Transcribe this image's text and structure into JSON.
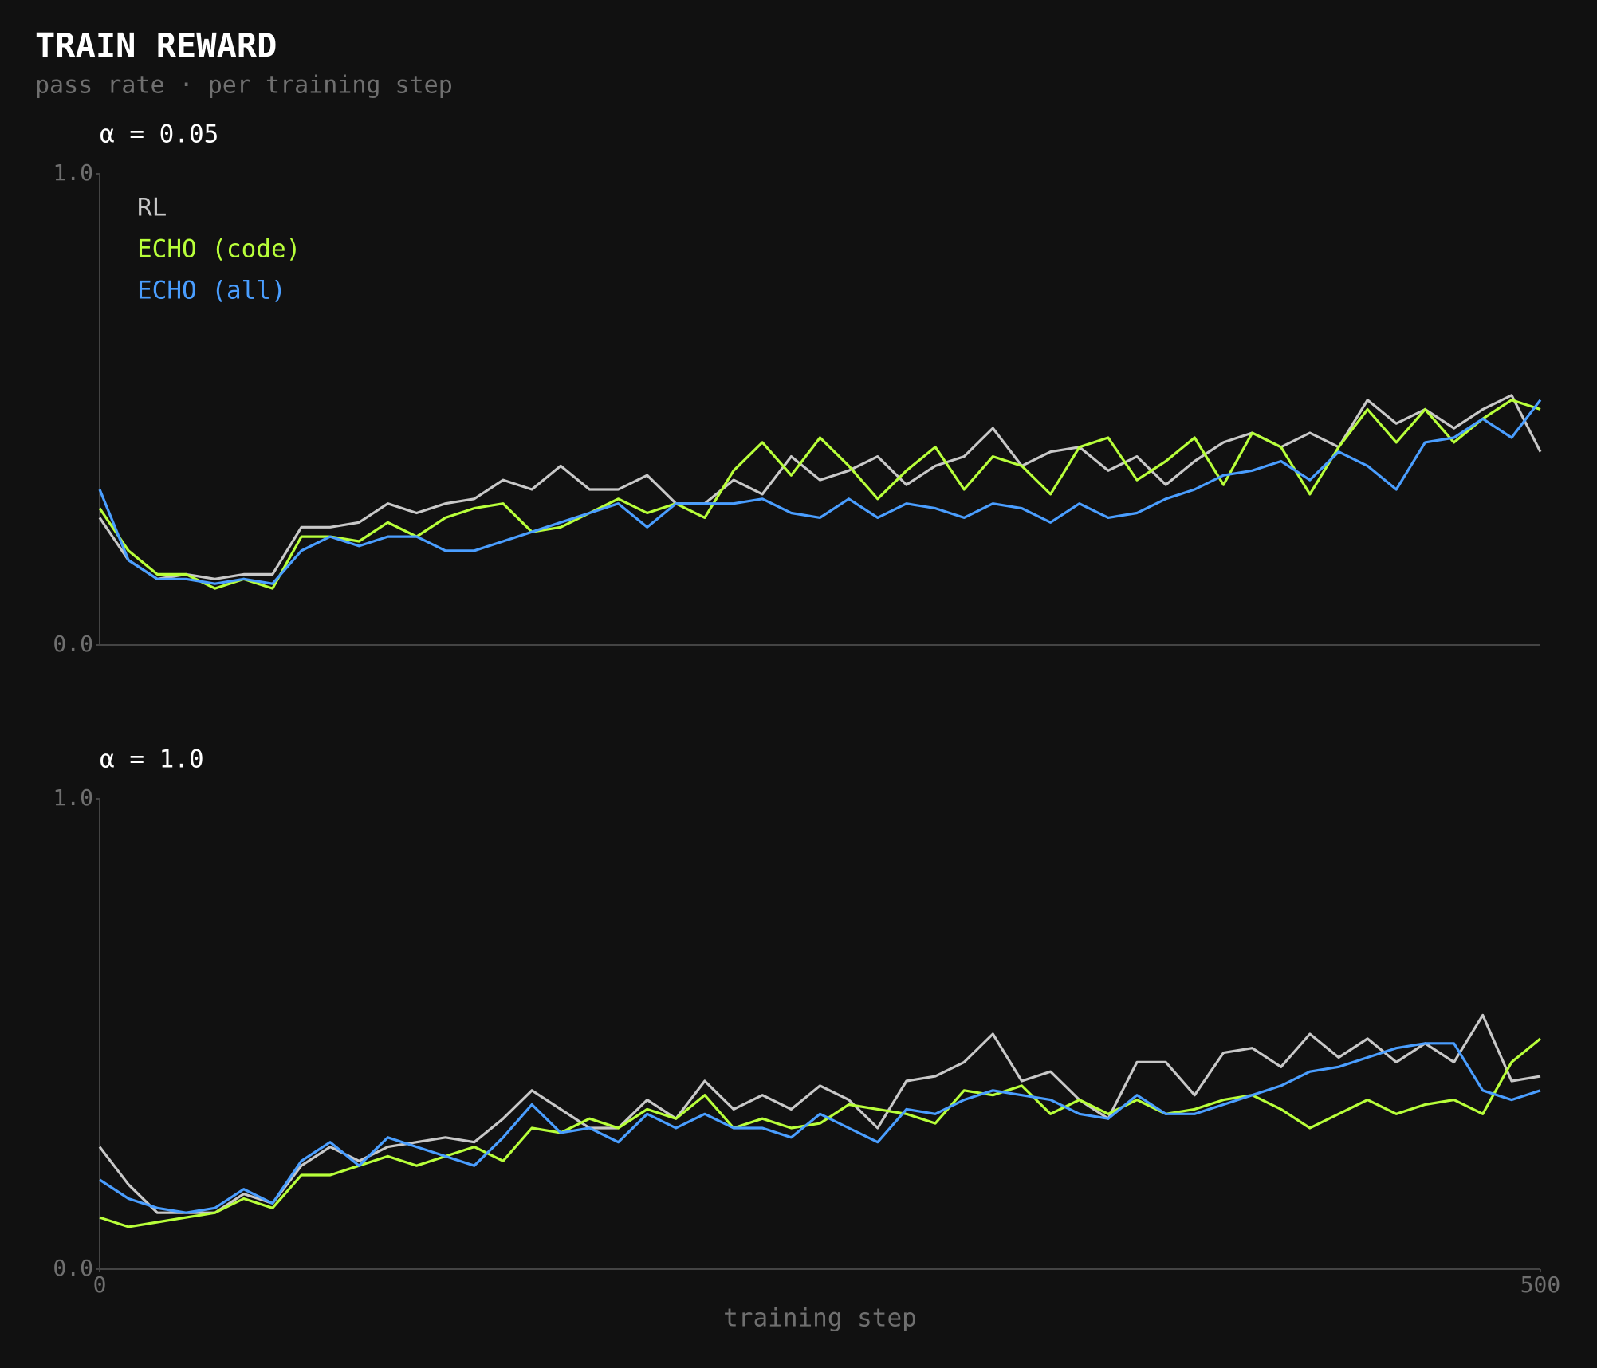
{
  "title": "TRAIN REWARD",
  "subtitle": "pass rate · per training step",
  "chart_data": [
    {
      "type": "line",
      "title": "α = 0.05",
      "legend": "upper left",
      "xlim": [
        0,
        500
      ],
      "ylim": [
        0,
        1
      ],
      "yticks": [
        {
          "value": 0,
          "label": "0.0"
        },
        {
          "value": 1,
          "label": "1.0"
        }
      ],
      "x": [
        0,
        10,
        20,
        30,
        40,
        50,
        60,
        70,
        80,
        90,
        100,
        110,
        120,
        130,
        140,
        150,
        160,
        170,
        180,
        190,
        200,
        210,
        220,
        230,
        240,
        250,
        260,
        270,
        280,
        290,
        300,
        310,
        320,
        330,
        340,
        350,
        360,
        370,
        380,
        390,
        400,
        410,
        420,
        430,
        440,
        450,
        460,
        470,
        480,
        490,
        500
      ],
      "series": [
        {
          "name": "RL",
          "color": "#c8c8c8",
          "values": [
            0.27,
            0.18,
            0.14,
            0.15,
            0.14,
            0.15,
            0.15,
            0.25,
            0.25,
            0.26,
            0.3,
            0.28,
            0.3,
            0.31,
            0.35,
            0.33,
            0.38,
            0.33,
            0.33,
            0.36,
            0.3,
            0.3,
            0.35,
            0.32,
            0.4,
            0.35,
            0.37,
            0.4,
            0.34,
            0.38,
            0.4,
            0.46,
            0.38,
            0.41,
            0.42,
            0.37,
            0.4,
            0.34,
            0.39,
            0.43,
            0.45,
            0.42,
            0.45,
            0.42,
            0.52,
            0.47,
            0.5,
            0.46,
            0.5,
            0.53,
            0.41
          ]
        },
        {
          "name": "ECHO (code)",
          "color": "#b8ff3a",
          "values": [
            0.29,
            0.2,
            0.15,
            0.15,
            0.12,
            0.14,
            0.12,
            0.23,
            0.23,
            0.22,
            0.26,
            0.23,
            0.27,
            0.29,
            0.3,
            0.24,
            0.25,
            0.28,
            0.31,
            0.28,
            0.3,
            0.27,
            0.37,
            0.43,
            0.36,
            0.44,
            0.38,
            0.31,
            0.37,
            0.42,
            0.33,
            0.4,
            0.38,
            0.32,
            0.42,
            0.44,
            0.35,
            0.39,
            0.44,
            0.34,
            0.45,
            0.42,
            0.32,
            0.42,
            0.5,
            0.43,
            0.5,
            0.43,
            0.48,
            0.52,
            0.5
          ]
        },
        {
          "name": "ECHO (all)",
          "color": "#4a9eff",
          "values": [
            0.33,
            0.18,
            0.14,
            0.14,
            0.13,
            0.14,
            0.13,
            0.2,
            0.23,
            0.21,
            0.23,
            0.23,
            0.2,
            0.2,
            0.22,
            0.24,
            0.26,
            0.28,
            0.3,
            0.25,
            0.3,
            0.3,
            0.3,
            0.31,
            0.28,
            0.27,
            0.31,
            0.27,
            0.3,
            0.29,
            0.27,
            0.3,
            0.29,
            0.26,
            0.3,
            0.27,
            0.28,
            0.31,
            0.33,
            0.36,
            0.37,
            0.39,
            0.35,
            0.41,
            0.38,
            0.33,
            0.43,
            0.44,
            0.48,
            0.44,
            0.52
          ]
        }
      ]
    },
    {
      "type": "line",
      "title": "α = 1.0",
      "xlabel": "training step",
      "xlim": [
        0,
        500
      ],
      "xticks": [
        0,
        500
      ],
      "ylim": [
        0,
        1
      ],
      "yticks": [
        {
          "value": 0,
          "label": "0.0"
        },
        {
          "value": 1,
          "label": "1.0"
        }
      ],
      "x": [
        0,
        10,
        20,
        30,
        40,
        50,
        60,
        70,
        80,
        90,
        100,
        110,
        120,
        130,
        140,
        150,
        160,
        170,
        180,
        190,
        200,
        210,
        220,
        230,
        240,
        250,
        260,
        270,
        280,
        290,
        300,
        310,
        320,
        330,
        340,
        350,
        360,
        370,
        380,
        390,
        400,
        410,
        420,
        430,
        440,
        450,
        460,
        470,
        480,
        490,
        500
      ],
      "series": [
        {
          "color": "#c8c8c8",
          "values": [
            0.26,
            0.18,
            0.12,
            0.12,
            0.12,
            0.16,
            0.14,
            0.22,
            0.26,
            0.23,
            0.26,
            0.27,
            0.28,
            0.27,
            0.32,
            0.38,
            0.34,
            0.3,
            0.3,
            0.36,
            0.32,
            0.4,
            0.34,
            0.37,
            0.34,
            0.39,
            0.36,
            0.3,
            0.4,
            0.41,
            0.44,
            0.5,
            0.4,
            0.42,
            0.36,
            0.32,
            0.44,
            0.44,
            0.37,
            0.46,
            0.47,
            0.43,
            0.5,
            0.45,
            0.49,
            0.44,
            0.48,
            0.44,
            0.54,
            0.4,
            0.41
          ]
        },
        {
          "color": "#b8ff3a",
          "values": [
            0.11,
            0.09,
            0.1,
            0.11,
            0.12,
            0.15,
            0.13,
            0.2,
            0.2,
            0.22,
            0.24,
            0.22,
            0.24,
            0.26,
            0.23,
            0.3,
            0.29,
            0.32,
            0.3,
            0.34,
            0.32,
            0.37,
            0.3,
            0.32,
            0.3,
            0.31,
            0.35,
            0.34,
            0.33,
            0.31,
            0.38,
            0.37,
            0.39,
            0.33,
            0.36,
            0.33,
            0.36,
            0.33,
            0.34,
            0.36,
            0.37,
            0.34,
            0.3,
            0.33,
            0.36,
            0.33,
            0.35,
            0.36,
            0.33,
            0.44,
            0.49
          ]
        },
        {
          "color": "#4a9eff",
          "values": [
            0.19,
            0.15,
            0.13,
            0.12,
            0.13,
            0.17,
            0.14,
            0.23,
            0.27,
            0.22,
            0.28,
            0.26,
            0.24,
            0.22,
            0.28,
            0.35,
            0.29,
            0.3,
            0.27,
            0.33,
            0.3,
            0.33,
            0.3,
            0.3,
            0.28,
            0.33,
            0.3,
            0.27,
            0.34,
            0.33,
            0.36,
            0.38,
            0.37,
            0.36,
            0.33,
            0.32,
            0.37,
            0.33,
            0.33,
            0.35,
            0.37,
            0.39,
            0.42,
            0.43,
            0.45,
            0.47,
            0.48,
            0.48,
            0.38,
            0.36,
            0.38
          ]
        }
      ]
    }
  ]
}
